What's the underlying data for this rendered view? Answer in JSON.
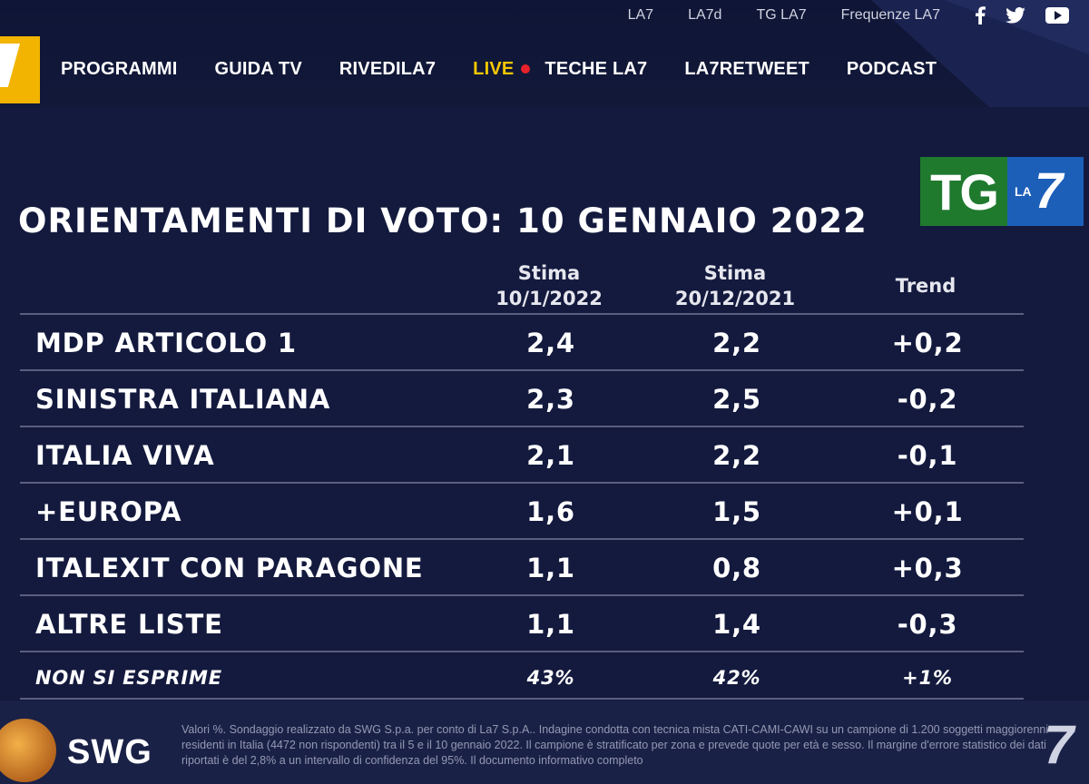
{
  "header": {
    "top_links": [
      "LA7",
      "LA7d",
      "TG LA7",
      "Frequenze LA7"
    ],
    "social_icons": [
      "facebook-icon",
      "twitter-icon",
      "youtube-icon"
    ],
    "nav": {
      "items_left": [
        "PROGRAMMI",
        "GUIDA TV",
        "RIVEDILA7"
      ],
      "live": "LIVE",
      "items_right": [
        "TECHE LA7",
        "LA7RETWEET",
        "PODCAST"
      ]
    },
    "colors": {
      "live": "#f6c800",
      "live_dot": "#e8222a",
      "logo": "#f2b400"
    }
  },
  "tg_logo": {
    "tg": "TG",
    "la": "LA",
    "seven": "7"
  },
  "main": {
    "title": "ORIENTAMENTI DI VOTO: 10 GENNAIO 2022",
    "columns": [
      {
        "line1": "Stima",
        "line2": "10/1/2022"
      },
      {
        "line1": "Stima",
        "line2": "20/12/2021"
      },
      {
        "line1": "Trend",
        "line2": ""
      }
    ],
    "rows": [
      {
        "name": "MDP ARTICOLO 1",
        "a": "2,4",
        "b": "2,2",
        "trend": "+0,2"
      },
      {
        "name": "SINISTRA ITALIANA",
        "a": "2,3",
        "b": "2,5",
        "trend": "-0,2"
      },
      {
        "name": "ITALIA VIVA",
        "a": "2,1",
        "b": "2,2",
        "trend": "-0,1"
      },
      {
        "name": "+EUROPA",
        "a": "1,6",
        "b": "1,5",
        "trend": "+0,1"
      },
      {
        "name": "ITALEXIT CON PARAGONE",
        "a": "1,1",
        "b": "0,8",
        "trend": "+0,3"
      },
      {
        "name": "ALTRE LISTE",
        "a": "1,1",
        "b": "1,4",
        "trend": "-0,3"
      }
    ],
    "non_si_esprime": {
      "name": "NON SI ESPRIME",
      "a": "43%",
      "b": "42%",
      "trend": "+1%"
    }
  },
  "footer": {
    "brand": "SWG",
    "note": "Valori %. Sondaggio realizzato da SWG S.p.a. per conto di La7 S.p.A.. Indagine condotta con tecnica mista CATI-CAMI-CAWI su un campione di 1.200 soggetti maggiorenni residenti in Italia (4472 non rispondenti) tra il 5 e il 10 gennaio 2022. Il campione è stratificato per zona e prevede quote per età e sesso. Il margine d'errore statistico dei dati riportati è del 2,8% a un intervallo di confidenza del 95%. Il documento informativo completo",
    "corner": "7"
  }
}
